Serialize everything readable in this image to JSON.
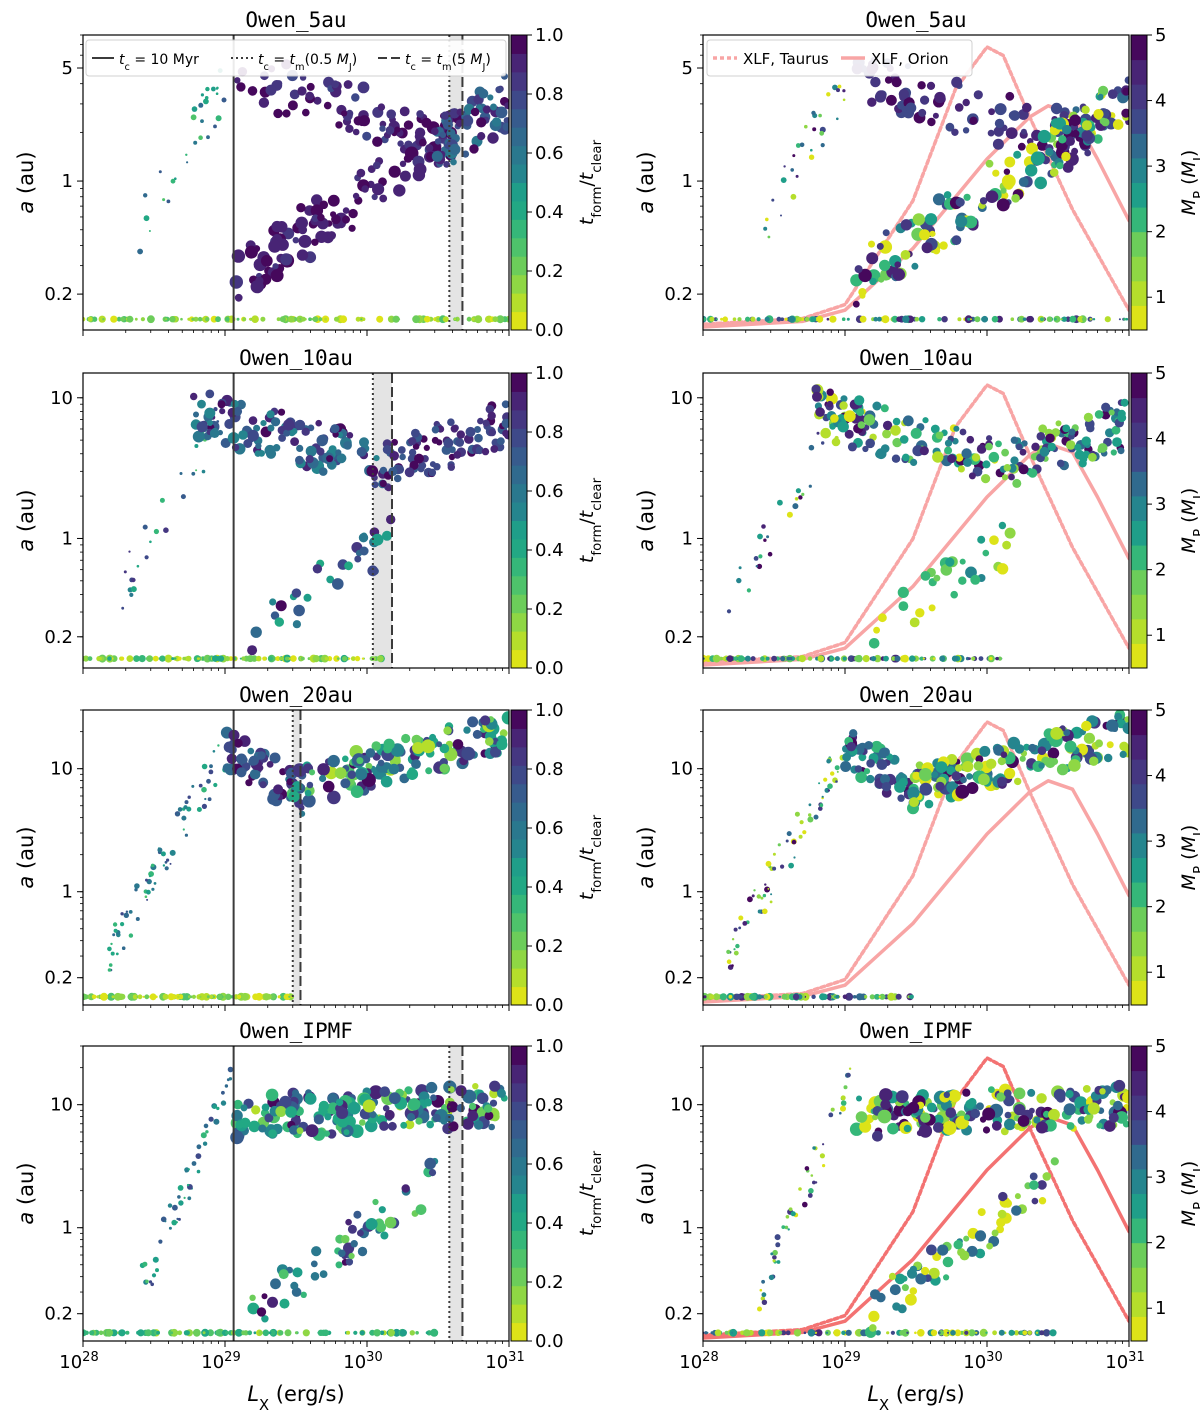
{
  "chart_data": {
    "type": "scatter",
    "xscale": "log",
    "yscale": "log",
    "xlim": [
      1e+28,
      1e+31
    ],
    "ylim": [
      0.12,
      8
    ],
    "shared_xlabel": "L_X (erg/s)",
    "xtick_values": [
      1e+28,
      1e+29,
      1e+30,
      1e+31
    ],
    "xtick_labels": [
      "28",
      "29",
      "30",
      "31"
    ],
    "ylabel": "a (au)",
    "left_colorbar": {
      "label_base": "t_form/t_clear",
      "label_sub_num": "form",
      "label_sub_den": "clear",
      "range": [
        0.0,
        1.0
      ],
      "ticks": [
        "0.0",
        "0.2",
        "0.4",
        "0.6",
        "0.8",
        "1.0"
      ],
      "colors": [
        "#dde318",
        "#b5de2b",
        "#8fd744",
        "#6ccd5a",
        "#4ec36b",
        "#35b779",
        "#22a884",
        "#1f9e89",
        "#25858e",
        "#2a788e",
        "#306a8e",
        "#375b8d",
        "#3e4989",
        "#453781",
        "#482475",
        "#46085c"
      ]
    },
    "right_colorbar": {
      "label": "M_P (M_J)",
      "range": [
        0.5,
        5
      ],
      "ticks": [
        "1",
        "2",
        "3",
        "4",
        "5"
      ],
      "colors": [
        "#dde318",
        "#b5de2b",
        "#8fd744",
        "#6ccd5a",
        "#35b779",
        "#1f9e89",
        "#25858e",
        "#306a8e",
        "#3e4989",
        "#453781",
        "#482475",
        "#46085c"
      ]
    },
    "legend_left": [
      {
        "style": "solid",
        "label": "t_c = 10 Myr"
      },
      {
        "style": "dotted",
        "label": "t_c = t_m(0.5 M_J)"
      },
      {
        "style": "dashed",
        "label": "t_c = t_m(5 M_J)"
      }
    ],
    "legend_right": [
      {
        "style": "dotted",
        "label": "XLF, Taurus"
      },
      {
        "style": "solid",
        "label": "XLF, Orion"
      }
    ],
    "xlf_curves": {
      "taurus": {
        "x": [
          1e+28,
          5e+28,
          1e+29,
          3e+29,
          6e+29,
          1e+30,
          1.3e+30,
          2e+30,
          4e+30,
          1e+31
        ],
        "y_frac": [
          0.01,
          0.03,
          0.08,
          0.45,
          0.85,
          1.0,
          0.97,
          0.75,
          0.42,
          0.06
        ]
      },
      "orion": {
        "x": [
          1e+28,
          5e+28,
          1e+29,
          3e+29,
          1e+30,
          2e+30,
          2.7e+30,
          4e+30,
          6e+30,
          1e+31
        ],
        "y_frac": [
          0.0,
          0.02,
          0.06,
          0.28,
          0.6,
          0.75,
          0.79,
          0.76,
          0.6,
          0.38
        ]
      }
    },
    "panels": [
      {
        "title": "Owen_5au",
        "ymax": 8,
        "yticks": [
          0.2,
          1,
          5
        ],
        "ytick_labels": [
          "0.2",
          "1",
          "5"
        ],
        "vlines": {
          "tc_10Myr": 1.15e+29,
          "tm_half_MJ": 3.8e+30,
          "tm_5MJ": 4.7e+30
        },
        "xlf_peak_frac": [
          0.95,
          0.68
        ],
        "orion_color": "#f8a5a5",
        "taurus_color": "#f8a5a5",
        "zones": [
          {
            "x0": 1e+28,
            "x1": 1e+31,
            "y0": 0.14,
            "y1": 0.14,
            "n": 120,
            "size": [
              1,
              4
            ],
            "age": [
              0.0,
              0.3
            ],
            "mass": [
              0.5,
              4.5
            ]
          },
          {
            "x0": 2.5e+28,
            "x1": 1e+29,
            "y0": 0.5,
            "y1": 4.0,
            "n": 30,
            "size": [
              1,
              3
            ],
            "age": [
              0.3,
              0.8
            ],
            "mass": [
              0.5,
              5
            ]
          },
          {
            "x0": 1.1e+29,
            "x1": 4e+30,
            "y0": 4.5,
            "y1": 1.8,
            "n": 80,
            "size": [
              3,
              6
            ],
            "age": [
              0.8,
              1.0
            ],
            "mass": [
              3.5,
              5
            ]
          },
          {
            "x0": 1.2e+29,
            "x1": 4e+30,
            "y0": 0.25,
            "y1": 1.9,
            "n": 110,
            "size": [
              3,
              7
            ],
            "age": [
              0.85,
              1.0
            ],
            "mass": [
              0.5,
              5
            ]
          },
          {
            "x0": 3e+30,
            "x1": 1e+31,
            "y0": 1.6,
            "y1": 3.2,
            "n": 70,
            "size": [
              3,
              6
            ],
            "age": [
              0.6,
              1.0
            ],
            "mass": [
              0.5,
              5
            ]
          }
        ]
      },
      {
        "title": "Owen_10au",
        "ymax": 15,
        "yticks": [
          0.2,
          1,
          10
        ],
        "ytick_labels": [
          "0.2",
          "1",
          "10"
        ],
        "vlines": {
          "tc_10Myr": 1.15e+29,
          "tm_half_MJ": 1.1e+30,
          "tm_5MJ": 1.5e+30
        },
        "xlf_peak_frac": [
          0.95,
          0.68
        ],
        "orion_color": "#f8a5a5",
        "taurus_color": "#f8a5a5",
        "zones": [
          {
            "x0": 1e+28,
            "x1": 1.3e+30,
            "y0": 0.14,
            "y1": 0.14,
            "n": 120,
            "size": [
              1,
              4
            ],
            "age": [
              0.0,
              0.4
            ],
            "mass": [
              0.5,
              4.5
            ]
          },
          {
            "x0": 1.5e+28,
            "x1": 1e+29,
            "y0": 0.3,
            "y1": 8.0,
            "n": 30,
            "size": [
              1,
              3
            ],
            "age": [
              0.3,
              0.9
            ],
            "mass": [
              0.5,
              5
            ]
          },
          {
            "x0": 6e+28,
            "x1": 1.3e+30,
            "y0": 8.0,
            "y1": 3.3,
            "n": 120,
            "size": [
              3,
              6
            ],
            "age": [
              0.5,
              1.0
            ],
            "mass": [
              0.5,
              5
            ]
          },
          {
            "x0": 1.3e+30,
            "x1": 1e+31,
            "y0": 3.3,
            "y1": 6.5,
            "n": 90,
            "size": [
              3,
              5
            ],
            "age": [
              0.7,
              1.0
            ],
            "mass": [
              1,
              5
            ]
          },
          {
            "x0": 1.5e+29,
            "x1": 1.5e+30,
            "y0": 0.2,
            "y1": 1.0,
            "n": 30,
            "size": [
              3,
              6
            ],
            "age": [
              0.4,
              1.0
            ],
            "mass": [
              0.5,
              3
            ]
          }
        ]
      },
      {
        "title": "Owen_20au",
        "ymax": 30,
        "yticks": [
          0.2,
          1,
          10
        ],
        "ytick_labels": [
          "0.2",
          "1",
          "10"
        ],
        "vlines": {
          "tc_10Myr": 1.15e+29,
          "tm_half_MJ": 3e+29,
          "tm_5MJ": 3.4e+29
        },
        "xlf_peak_frac": [
          0.95,
          0.68
        ],
        "orion_color": "#f8a5a5",
        "taurus_color": "#f8a5a5",
        "zones": [
          {
            "x0": 1e+28,
            "x1": 3e+29,
            "y0": 0.14,
            "y1": 0.14,
            "n": 100,
            "size": [
              1,
              4
            ],
            "age": [
              0.0,
              0.3
            ],
            "mass": [
              0.5,
              4.5
            ]
          },
          {
            "x0": 1.5e+28,
            "x1": 1e+29,
            "y0": 0.3,
            "y1": 14.0,
            "n": 70,
            "size": [
              1,
              3
            ],
            "age": [
              0.3,
              0.8
            ],
            "mass": [
              0.5,
              5
            ]
          },
          {
            "x0": 1e+29,
            "x1": 3.5e+29,
            "y0": 15.0,
            "y1": 6.0,
            "n": 60,
            "size": [
              3,
              6
            ],
            "age": [
              0.6,
              1.0
            ],
            "mass": [
              2,
              5
            ]
          },
          {
            "x0": 3e+29,
            "x1": 1e+31,
            "y0": 7.0,
            "y1": 20.0,
            "n": 140,
            "size": [
              3,
              7
            ],
            "age": [
              0.1,
              1.0
            ],
            "mass": [
              0.5,
              5
            ]
          }
        ]
      },
      {
        "title": "Owen_IPMF",
        "ymax": 30,
        "yticks": [
          0.2,
          1,
          10
        ],
        "ytick_labels": [
          "0.2",
          "1",
          "10"
        ],
        "vlines": {
          "tc_10Myr": 1.15e+29,
          "tm_half_MJ": 3.8e+30,
          "tm_5MJ": 4.7e+30
        },
        "xlf_peak_frac": [
          0.95,
          0.68
        ],
        "orion_color": "#f37272",
        "taurus_color": "#f37272",
        "zones": [
          {
            "x0": 1e+28,
            "x1": 3e+30,
            "y0": 0.14,
            "y1": 0.14,
            "n": 110,
            "size": [
              1,
              4
            ],
            "age": [
              0.1,
              0.5
            ],
            "mass": [
              0.5,
              4.5
            ]
          },
          {
            "x0": 2.5e+28,
            "x1": 1.1e+29,
            "y0": 0.3,
            "y1": 14.0,
            "n": 50,
            "size": [
              1,
              3
            ],
            "age": [
              0.3,
              0.8
            ],
            "mass": [
              0.5,
              5
            ]
          },
          {
            "x0": 1.2e+29,
            "x1": 1e+31,
            "y0": 8.0,
            "y1": 10.0,
            "n": 180,
            "size": [
              3,
              7
            ],
            "age": [
              0.1,
              1.0
            ],
            "mass": [
              0.5,
              5
            ]
          },
          {
            "x0": 1.5e+29,
            "x1": 3e+30,
            "y0": 0.2,
            "y1": 2.5,
            "n": 60,
            "size": [
              3,
              6
            ],
            "age": [
              0.2,
              1.0
            ],
            "mass": [
              0.5,
              4
            ]
          }
        ]
      }
    ]
  }
}
